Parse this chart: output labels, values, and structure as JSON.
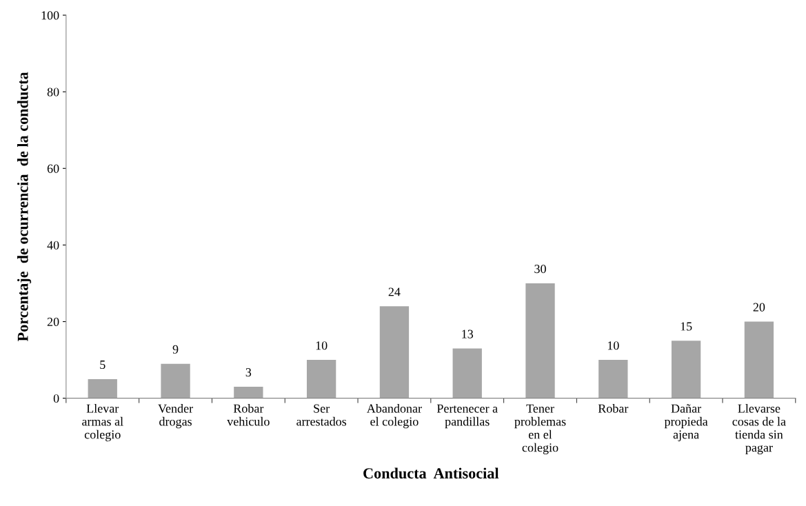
{
  "chart_data": {
    "type": "bar",
    "xlabel": "Conducta  Antisocial",
    "ylabel": "Porcentaje  de ocurrencia  de la conducta",
    "categories": [
      "Llevar\narmas al\ncolegio",
      "Vender\ndrogas",
      "Robar\nvehiculo",
      "Ser\narrestados",
      "Abandonar\nel colegio",
      "Pertenecer a\npandillas",
      "Tener\nproblemas\nen el\ncolegio",
      "Robar",
      "Dañar\npropieda\najena",
      "Llevarse\ncosas de la\ntienda sin\npagar"
    ],
    "values": [
      5,
      9,
      3,
      10,
      24,
      13,
      30,
      10,
      15,
      20
    ],
    "color": "#a6a6a6",
    "ylim": [
      0,
      100
    ],
    "yticks": [
      0,
      20,
      40,
      60,
      80,
      100
    ],
    "grid": false,
    "data_labels": true
  }
}
